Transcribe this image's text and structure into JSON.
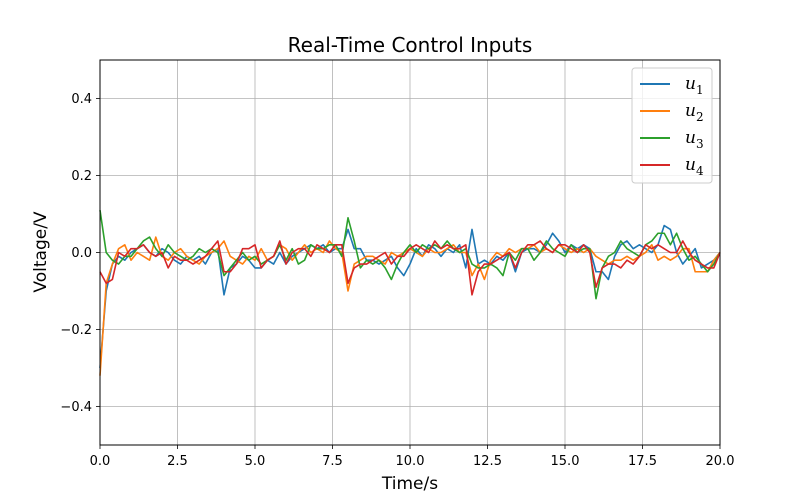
{
  "chart_data": {
    "type": "line",
    "title": "Real-Time Control Inputs",
    "xlabel": "Time/s",
    "ylabel": "Voltage/V",
    "xlim": [
      0,
      20
    ],
    "ylim": [
      -0.5,
      0.5
    ],
    "xticks": [
      0,
      2.5,
      5,
      7.5,
      10,
      12.5,
      15,
      17.5,
      20
    ],
    "xtick_labels": [
      "0.0",
      "2.5",
      "5.0",
      "7.5",
      "10.0",
      "12.5",
      "15.0",
      "17.5",
      "20.0"
    ],
    "yticks": [
      -0.4,
      -0.2,
      0.0,
      0.2,
      0.4
    ],
    "ytick_labels": [
      "−0.4",
      "−0.2",
      "0.0",
      "0.2",
      "0.4"
    ],
    "grid": true,
    "legend_position": "top-right",
    "x": [
      0,
      0.2,
      0.4,
      0.6,
      0.8,
      1.0,
      1.2,
      1.4,
      1.6,
      1.8,
      2.0,
      2.2,
      2.4,
      2.6,
      2.8,
      3.0,
      3.2,
      3.4,
      3.6,
      3.8,
      4.0,
      4.2,
      4.4,
      4.6,
      4.8,
      5.0,
      5.2,
      5.4,
      5.6,
      5.8,
      6.0,
      6.2,
      6.4,
      6.6,
      6.8,
      7.0,
      7.2,
      7.4,
      7.6,
      7.8,
      8.0,
      8.2,
      8.4,
      8.6,
      8.8,
      9.0,
      9.2,
      9.4,
      9.6,
      9.8,
      10.0,
      10.2,
      10.4,
      10.6,
      10.8,
      11.0,
      11.2,
      11.4,
      11.6,
      11.8,
      12.0,
      12.2,
      12.4,
      12.6,
      12.8,
      13.0,
      13.2,
      13.4,
      13.6,
      13.8,
      14.0,
      14.2,
      14.4,
      14.6,
      14.8,
      15.0,
      15.2,
      15.4,
      15.6,
      15.8,
      16.0,
      16.2,
      16.4,
      16.6,
      16.8,
      17.0,
      17.2,
      17.4,
      17.6,
      17.8,
      18.0,
      18.2,
      18.4,
      18.6,
      18.8,
      19.0,
      19.2,
      19.4,
      19.6,
      19.8,
      20.0
    ],
    "series": [
      {
        "name": "u1",
        "label_base": "u",
        "label_sub": "1",
        "color": "#1f77b4",
        "values": [
          -0.3,
          -0.1,
          -0.03,
          -0.01,
          -0.02,
          0.0,
          0.01,
          0.02,
          0.0,
          -0.01,
          0.01,
          0.0,
          -0.02,
          -0.03,
          -0.01,
          -0.02,
          -0.01,
          -0.03,
          0.0,
          0.01,
          -0.11,
          -0.04,
          -0.03,
          -0.01,
          -0.02,
          -0.04,
          -0.04,
          -0.02,
          -0.03,
          0.0,
          -0.03,
          -0.01,
          0.0,
          0.01,
          0.02,
          0.01,
          0.02,
          0.0,
          0.01,
          0.01,
          0.06,
          0.01,
          0.01,
          -0.02,
          -0.02,
          -0.03,
          -0.02,
          -0.01,
          -0.04,
          -0.06,
          -0.03,
          0.01,
          -0.01,
          0.02,
          0.01,
          -0.01,
          0.01,
          0.0,
          0.02,
          -0.04,
          0.06,
          -0.03,
          -0.02,
          -0.03,
          -0.01,
          -0.02,
          0.0,
          -0.05,
          0.0,
          0.01,
          0.01,
          0.0,
          0.02,
          0.05,
          0.03,
          0.0,
          0.02,
          0.01,
          0.02,
          0.01,
          -0.05,
          -0.05,
          -0.07,
          -0.01,
          0.02,
          0.03,
          0.01,
          0.02,
          0.01,
          0.0,
          0.02,
          0.07,
          0.06,
          0.0,
          -0.03,
          -0.01,
          0.01,
          -0.04,
          -0.03,
          -0.02,
          0.0
        ]
      },
      {
        "name": "u2",
        "label_base": "u",
        "label_sub": "2",
        "color": "#ff7f0e",
        "values": [
          -0.32,
          -0.08,
          -0.03,
          0.01,
          0.02,
          -0.02,
          0.0,
          -0.01,
          -0.02,
          0.04,
          -0.01,
          -0.02,
          0.0,
          0.01,
          -0.01,
          -0.02,
          -0.03,
          -0.01,
          0.0,
          0.01,
          0.03,
          -0.01,
          -0.02,
          -0.03,
          -0.01,
          -0.02,
          0.01,
          -0.02,
          -0.01,
          0.02,
          0.01,
          -0.02,
          0.0,
          0.02,
          0.0,
          0.01,
          0.0,
          0.03,
          0.01,
          0.0,
          -0.1,
          -0.03,
          -0.02,
          -0.01,
          -0.01,
          -0.02,
          -0.03,
          0.0,
          -0.01,
          0.0,
          0.01,
          0.0,
          -0.01,
          0.01,
          0.0,
          0.0,
          0.01,
          0.02,
          0.0,
          0.0,
          -0.06,
          -0.03,
          -0.07,
          -0.02,
          0.0,
          -0.01,
          0.01,
          0.0,
          0.01,
          0.01,
          0.02,
          0.0,
          0.01,
          0.0,
          0.02,
          0.01,
          0.0,
          0.01,
          0.0,
          0.01,
          -0.01,
          -0.02,
          -0.03,
          -0.02,
          -0.02,
          -0.01,
          -0.02,
          -0.01,
          0.0,
          0.02,
          -0.02,
          -0.01,
          -0.02,
          -0.01,
          0.01,
          0.01,
          -0.05,
          -0.05,
          -0.05,
          -0.02,
          0.0
        ]
      },
      {
        "name": "u3",
        "label_base": "u",
        "label_sub": "3",
        "color": "#2ca02c",
        "values": [
          0.11,
          0.0,
          -0.02,
          -0.03,
          -0.01,
          -0.01,
          0.01,
          0.03,
          0.04,
          0.01,
          -0.01,
          0.02,
          0.0,
          -0.01,
          -0.02,
          -0.01,
          0.01,
          0.0,
          0.01,
          0.0,
          -0.06,
          -0.04,
          -0.02,
          0.0,
          -0.02,
          -0.01,
          -0.03,
          -0.02,
          -0.01,
          0.02,
          -0.02,
          0.01,
          -0.03,
          -0.02,
          0.02,
          0.01,
          0.01,
          0.02,
          0.02,
          -0.01,
          0.09,
          0.03,
          -0.04,
          -0.02,
          -0.03,
          -0.02,
          -0.04,
          -0.07,
          -0.03,
          0.0,
          0.02,
          0.0,
          0.02,
          0.01,
          0.02,
          0.01,
          0.03,
          0.01,
          0.0,
          0.01,
          -0.03,
          -0.04,
          -0.04,
          -0.03,
          -0.04,
          -0.06,
          0.0,
          -0.02,
          0.01,
          0.01,
          -0.02,
          0.0,
          0.03,
          0.01,
          0.0,
          -0.01,
          0.02,
          0.0,
          0.01,
          0.01,
          -0.12,
          -0.04,
          -0.01,
          0.0,
          0.03,
          0.01,
          0.0,
          -0.01,
          0.02,
          0.03,
          0.05,
          0.05,
          0.02,
          0.05,
          0.01,
          -0.02,
          -0.01,
          -0.03,
          -0.05,
          -0.03,
          0.0
        ]
      },
      {
        "name": "u4",
        "label_base": "u",
        "label_sub": "4",
        "color": "#d62728",
        "values": [
          -0.05,
          -0.08,
          -0.07,
          0.0,
          -0.01,
          0.01,
          0.01,
          0.02,
          0.0,
          -0.01,
          0.0,
          -0.04,
          -0.01,
          -0.02,
          -0.02,
          -0.03,
          -0.02,
          -0.01,
          0.01,
          0.03,
          -0.05,
          -0.05,
          -0.03,
          0.01,
          0.01,
          0.02,
          -0.04,
          -0.02,
          -0.01,
          0.03,
          -0.03,
          0.0,
          0.01,
          0.01,
          -0.01,
          0.02,
          0.01,
          0.0,
          0.02,
          0.02,
          -0.08,
          -0.04,
          -0.03,
          -0.03,
          -0.02,
          -0.01,
          0.0,
          -0.03,
          -0.01,
          -0.01,
          0.01,
          0.02,
          0.01,
          0.0,
          0.03,
          0.01,
          0.02,
          0.01,
          0.01,
          0.02,
          -0.11,
          -0.05,
          -0.03,
          -0.03,
          -0.02,
          -0.01,
          0.0,
          -0.04,
          0.0,
          0.02,
          0.02,
          0.03,
          0.01,
          0.0,
          0.02,
          0.02,
          0.01,
          0.0,
          0.02,
          0.0,
          -0.09,
          -0.04,
          -0.03,
          -0.03,
          -0.04,
          -0.02,
          -0.03,
          -0.01,
          0.02,
          0.01,
          0.02,
          0.01,
          0.0,
          0.0,
          0.03,
          0.0,
          -0.02,
          -0.03,
          -0.04,
          -0.04,
          0.0
        ]
      }
    ]
  }
}
